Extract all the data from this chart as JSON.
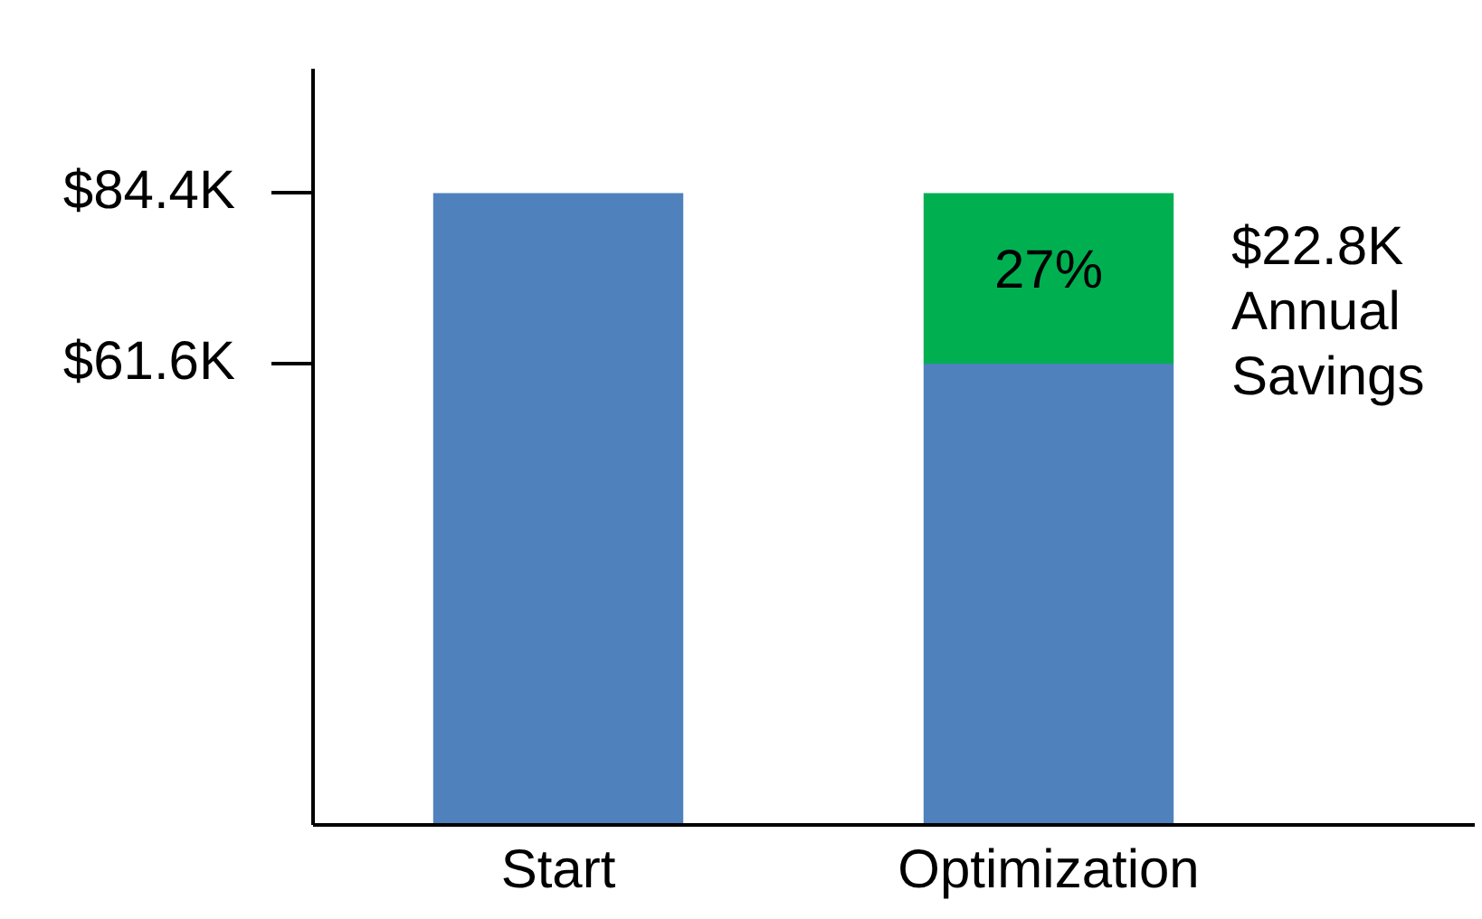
{
  "chart_data": {
    "type": "bar",
    "stacked": true,
    "categories": [
      "Start",
      "Optimization"
    ],
    "series": [
      {
        "color": "#4f81bd",
        "values": [
          84.4,
          61.6
        ]
      },
      {
        "color": "#00b050",
        "values": [
          null,
          22.8
        ]
      }
    ],
    "ylim": [
      0,
      101
    ],
    "yticks": [
      {
        "value": 84.4,
        "label": "$84.4K"
      },
      {
        "value": 61.6,
        "label": "$61.6K"
      }
    ],
    "grid": false,
    "legend": false,
    "annotations": [
      "27%",
      "$22.8K Annual Savings"
    ]
  }
}
